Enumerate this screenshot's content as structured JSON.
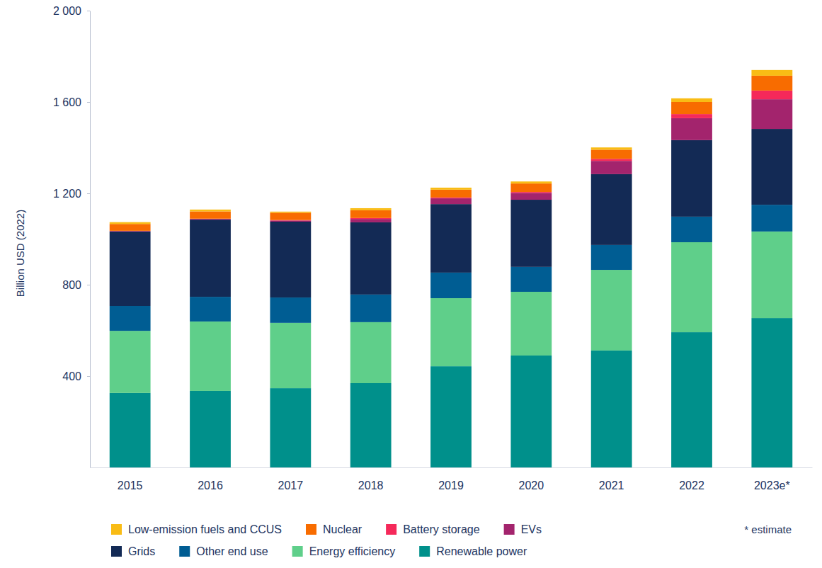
{
  "chart_data": {
    "type": "bar",
    "stacked": true,
    "grid": false,
    "legend": "bottom",
    "y_label": "Billion USD (2022)",
    "annotations": [
      "* estimate"
    ],
    "categories": [
      "2015",
      "2016",
      "2017",
      "2018",
      "2019",
      "2020",
      "2021",
      "2022",
      "2023e*"
    ],
    "ylim": [
      0,
      2000
    ],
    "yticks": [
      400,
      800,
      {
        "value": 1200,
        "label": "1 200"
      },
      {
        "value": 1600,
        "label": "1 600"
      },
      {
        "value": 2000,
        "label": "2 000"
      }
    ],
    "series": [
      {
        "name": "Renewable power",
        "color": "#00908b",
        "values": [
          326,
          335,
          347,
          369,
          443,
          490,
          512,
          592,
          654
        ]
      },
      {
        "name": "Energy efficiency",
        "color": "#5fcf8a",
        "values": [
          272,
          304,
          286,
          267,
          298,
          279,
          353,
          394,
          379
        ]
      },
      {
        "name": "Other end use",
        "color": "#005d93",
        "values": [
          109,
          108,
          111,
          121,
          112,
          109,
          109,
          112,
          117
        ]
      },
      {
        "name": "Grids",
        "color": "#132a55",
        "values": [
          326,
          338,
          332,
          316,
          300,
          294,
          310,
          335,
          332
        ]
      },
      {
        "name": "EVs",
        "color": "#a3246d",
        "values": [
          2,
          3,
          5,
          15,
          25,
          30,
          58,
          96,
          130
        ]
      },
      {
        "name": "Battery storage",
        "color": "#f5295a",
        "values": [
          1,
          1,
          2,
          4,
          4,
          4,
          9,
          18,
          38
        ]
      },
      {
        "name": "Nuclear",
        "color": "#f86c00",
        "values": [
          30,
          32,
          32,
          34,
          34,
          37,
          40,
          53,
          65
        ]
      },
      {
        "name": "Low-emission fuels and CCUS",
        "color": "#f9bc15",
        "values": [
          8,
          8,
          5,
          9,
          9,
          9,
          10,
          16,
          25
        ]
      }
    ]
  }
}
